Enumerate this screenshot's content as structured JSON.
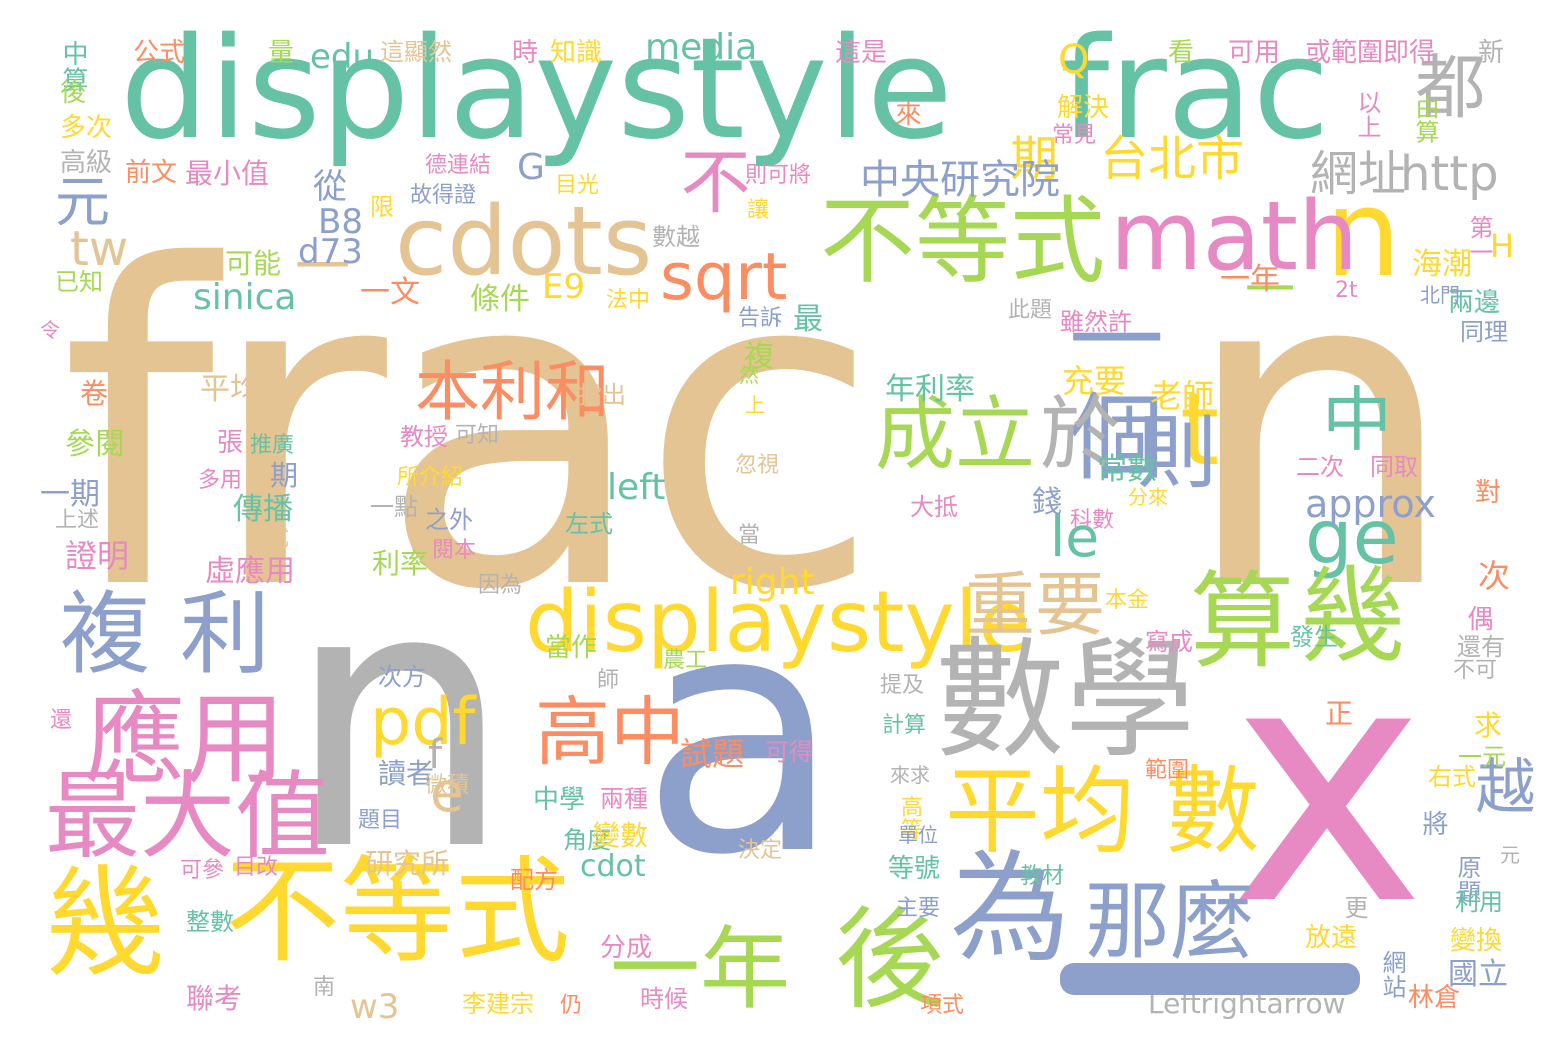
{
  "palette": {
    "green": "#66c2a5",
    "tan": "#e5c494",
    "gray": "#b3b3b3",
    "blue": "#8da0cb",
    "pink": "#e78ac3",
    "yellow": "#ffd92f",
    "lime": "#a6d854",
    "orange": "#fc8d62"
  },
  "words": [
    {
      "text": "frac",
      "color": "tan"
    },
    {
      "text": "n",
      "color": "tan"
    },
    {
      "text": "n",
      "color": "gray"
    },
    {
      "text": "a",
      "color": "blue"
    },
    {
      "text": "x",
      "color": "pink"
    },
    {
      "text": "displaystyle",
      "color": "green"
    },
    {
      "text": "frac",
      "color": "green"
    },
    {
      "text": "n",
      "color": "yellow"
    },
    {
      "text": "都",
      "color": "gray"
    },
    {
      "text": "cdots",
      "color": "tan"
    },
    {
      "text": "不等式",
      "color": "lime"
    },
    {
      "text": "math",
      "color": "pink"
    },
    {
      "text": "不",
      "color": "pink"
    },
    {
      "text": "sqrt",
      "color": "orange"
    },
    {
      "text": "期",
      "color": "yellow"
    },
    {
      "text": "台北市",
      "color": "yellow"
    },
    {
      "text": "一個",
      "color": "blue"
    },
    {
      "text": "成立",
      "color": "lime"
    },
    {
      "text": "於",
      "color": "gray"
    },
    {
      "text": "t",
      "color": "yellow"
    },
    {
      "text": "中",
      "color": "green"
    },
    {
      "text": "則",
      "color": "blue"
    },
    {
      "text": "ge",
      "color": "green"
    },
    {
      "text": "le",
      "color": "green"
    },
    {
      "text": "本利和",
      "color": "orange"
    },
    {
      "text": "displaystyle",
      "color": "yellow"
    },
    {
      "text": "重要",
      "color": "tan"
    },
    {
      "text": "算",
      "color": "lime"
    },
    {
      "text": "幾",
      "color": "lime"
    },
    {
      "text": "數學",
      "color": "gray"
    },
    {
      "text": "複",
      "color": "blue"
    },
    {
      "text": "利",
      "color": "blue"
    },
    {
      "text": "應用",
      "color": "pink"
    },
    {
      "text": "最大值",
      "color": "pink"
    },
    {
      "text": "pdf",
      "color": "yellow"
    },
    {
      "text": "高中",
      "color": "orange"
    },
    {
      "text": "平均",
      "color": "yellow"
    },
    {
      "text": "數",
      "color": "yellow"
    },
    {
      "text": "幾",
      "color": "yellow"
    },
    {
      "text": "不等式",
      "color": "yellow"
    },
    {
      "text": "一年",
      "color": "lime"
    },
    {
      "text": "後",
      "color": "lime"
    },
    {
      "text": "為",
      "color": "blue"
    },
    {
      "text": "那麼",
      "color": "blue"
    },
    {
      "text": "元",
      "color": "blue"
    },
    {
      "text": "tw",
      "color": "tan"
    },
    {
      "text": "一",
      "color": "tan"
    },
    {
      "text": "一",
      "color": "lime"
    },
    {
      "text": "e",
      "color": "tan"
    },
    {
      "text": "越",
      "color": "blue"
    },
    {
      "text": "網址",
      "color": "gray"
    },
    {
      "text": "http",
      "color": "gray"
    },
    {
      "text": "中央研究院",
      "color": "blue"
    },
    {
      "text": "年利率",
      "color": "green"
    },
    {
      "text": "edu",
      "color": "green"
    },
    {
      "text": "media",
      "color": "green"
    },
    {
      "text": "Q",
      "color": "yellow"
    },
    {
      "text": "G",
      "color": "blue"
    },
    {
      "text": "B8",
      "color": "blue"
    },
    {
      "text": "d73",
      "color": "blue"
    },
    {
      "text": "sinica",
      "color": "green"
    },
    {
      "text": "E9",
      "color": "yellow"
    },
    {
      "text": "approx",
      "color": "blue"
    },
    {
      "text": "left",
      "color": "green"
    },
    {
      "text": "right",
      "color": "yellow"
    },
    {
      "text": "cdot",
      "color": "green"
    },
    {
      "text": "w3",
      "color": "tan"
    },
    {
      "text": "f",
      "color": "gray"
    },
    {
      "text": "H",
      "color": "yellow"
    },
    {
      "text": "2t",
      "color": "pink"
    },
    {
      "text": "Leftrightarrow",
      "color": "gray"
    },
    {
      "text": "中算",
      "color": "green"
    },
    {
      "text": "公式",
      "color": "orange"
    },
    {
      "text": "量",
      "color": "lime"
    },
    {
      "text": "這顯然",
      "color": "tan"
    },
    {
      "text": "時",
      "color": "pink"
    },
    {
      "text": "知識",
      "color": "yellow"
    },
    {
      "text": "這是",
      "color": "pink"
    },
    {
      "text": "看",
      "color": "lime"
    },
    {
      "text": "可用",
      "color": "pink"
    },
    {
      "text": "或範圍即得",
      "color": "pink"
    },
    {
      "text": "新",
      "color": "gray"
    },
    {
      "text": "後",
      "color": "lime"
    },
    {
      "text": "多次",
      "color": "yellow"
    },
    {
      "text": "高級",
      "color": "gray"
    },
    {
      "text": "前文",
      "color": "orange"
    },
    {
      "text": "最小值",
      "color": "pink"
    },
    {
      "text": "可能",
      "color": "lime"
    },
    {
      "text": "已知",
      "color": "lime"
    },
    {
      "text": "令",
      "color": "pink"
    },
    {
      "text": "卷",
      "color": "orange"
    },
    {
      "text": "參閱",
      "color": "lime"
    },
    {
      "text": "一期",
      "color": "blue"
    },
    {
      "text": "上述",
      "color": "gray"
    },
    {
      "text": "證明",
      "color": "pink"
    },
    {
      "text": "解決",
      "color": "yellow"
    },
    {
      "text": "常見",
      "color": "pink"
    },
    {
      "text": "來",
      "color": "orange"
    },
    {
      "text": "以上",
      "color": "pink"
    },
    {
      "text": "由算",
      "color": "lime"
    },
    {
      "text": "第一",
      "color": "pink"
    },
    {
      "text": "兩邊",
      "color": "green"
    },
    {
      "text": "同理",
      "color": "blue"
    },
    {
      "text": "北門",
      "color": "blue"
    },
    {
      "text": "海潮",
      "color": "yellow"
    },
    {
      "text": "條件",
      "color": "lime"
    },
    {
      "text": "充要",
      "color": "yellow"
    },
    {
      "text": "老師",
      "color": "yellow"
    },
    {
      "text": "常數",
      "color": "green"
    },
    {
      "text": "錢",
      "color": "blue"
    },
    {
      "text": "科數",
      "color": "pink"
    },
    {
      "text": "二次",
      "color": "pink"
    },
    {
      "text": "同取",
      "color": "pink"
    },
    {
      "text": "分來",
      "color": "yellow"
    },
    {
      "text": "對",
      "color": "orange"
    },
    {
      "text": "次",
      "color": "orange"
    },
    {
      "text": "偶",
      "color": "pink"
    },
    {
      "text": "還有",
      "color": "gray"
    },
    {
      "text": "不可",
      "color": "gray"
    },
    {
      "text": "發生",
      "color": "green"
    },
    {
      "text": "寫成",
      "color": "pink"
    },
    {
      "text": "本金",
      "color": "yellow"
    },
    {
      "text": "求",
      "color": "yellow"
    },
    {
      "text": "一元",
      "color": "lime"
    },
    {
      "text": "右式",
      "color": "yellow"
    },
    {
      "text": "正",
      "color": "orange"
    },
    {
      "text": "範圍",
      "color": "orange"
    },
    {
      "text": "將",
      "color": "blue"
    },
    {
      "text": "原題",
      "color": "blue"
    },
    {
      "text": "利用",
      "color": "green"
    },
    {
      "text": "變換",
      "color": "yellow"
    },
    {
      "text": "網站",
      "color": "blue"
    },
    {
      "text": "國立",
      "color": "blue"
    },
    {
      "text": "更",
      "color": "gray"
    },
    {
      "text": "放遠",
      "color": "yellow"
    },
    {
      "text": "林倉",
      "color": "orange"
    },
    {
      "text": "元",
      "color": "gray"
    },
    {
      "text": "平均",
      "color": "tan"
    },
    {
      "text": "張",
      "color": "pink"
    },
    {
      "text": "推廣",
      "color": "green"
    },
    {
      "text": "期",
      "color": "blue"
    },
    {
      "text": "多用",
      "color": "pink"
    },
    {
      "text": "傳播",
      "color": "green"
    },
    {
      "text": "型式",
      "color": "tan"
    },
    {
      "text": "虛應用",
      "color": "pink"
    },
    {
      "text": "指出",
      "color": "tan"
    },
    {
      "text": "教授",
      "color": "pink"
    },
    {
      "text": "可知",
      "color": "gray"
    },
    {
      "text": "所介紹",
      "color": "yellow"
    },
    {
      "text": "一點",
      "color": "gray"
    },
    {
      "text": "之外",
      "color": "blue"
    },
    {
      "text": "閱本",
      "color": "pink"
    },
    {
      "text": "利率",
      "color": "lime"
    },
    {
      "text": "因為",
      "color": "gray"
    },
    {
      "text": "左式",
      "color": "green"
    },
    {
      "text": "複",
      "color": "lime"
    },
    {
      "text": "然",
      "color": "lime"
    },
    {
      "text": "上",
      "color": "yellow"
    },
    {
      "text": "忽視",
      "color": "tan"
    },
    {
      "text": "當",
      "color": "gray"
    },
    {
      "text": "大抵",
      "color": "pink"
    },
    {
      "text": "從",
      "color": "blue"
    },
    {
      "text": "德連結",
      "color": "pink"
    },
    {
      "text": "故得證",
      "color": "blue"
    },
    {
      "text": "目光",
      "color": "yellow"
    },
    {
      "text": "則可將",
      "color": "pink"
    },
    {
      "text": "限",
      "color": "yellow"
    },
    {
      "text": "讓",
      "color": "yellow"
    },
    {
      "text": "數越",
      "color": "gray"
    },
    {
      "text": "此題",
      "color": "gray"
    },
    {
      "text": "雖然許",
      "color": "pink"
    },
    {
      "text": "一文",
      "color": "orange"
    },
    {
      "text": "一年",
      "color": "orange"
    },
    {
      "text": "告訴",
      "color": "blue"
    },
    {
      "text": "最",
      "color": "green"
    },
    {
      "text": "法中",
      "color": "yellow"
    },
    {
      "text": "當作",
      "color": "lime"
    },
    {
      "text": "農工",
      "color": "lime"
    },
    {
      "text": "次方",
      "color": "blue"
    },
    {
      "text": "師",
      "color": "gray"
    },
    {
      "text": "提及",
      "color": "gray"
    },
    {
      "text": "計算",
      "color": "green"
    },
    {
      "text": "讀者",
      "color": "blue"
    },
    {
      "text": "試題",
      "color": "orange"
    },
    {
      "text": "可得",
      "color": "pink"
    },
    {
      "text": "微積",
      "color": "tan"
    },
    {
      "text": "中學",
      "color": "green"
    },
    {
      "text": "兩種",
      "color": "pink"
    },
    {
      "text": "來求",
      "color": "gray"
    },
    {
      "text": "高等",
      "color": "yellow"
    },
    {
      "text": "單位",
      "color": "blue"
    },
    {
      "text": "題目",
      "color": "blue"
    },
    {
      "text": "角度",
      "color": "green"
    },
    {
      "text": "變數",
      "color": "yellow"
    },
    {
      "text": "研究所",
      "color": "tan"
    },
    {
      "text": "決定",
      "color": "tan"
    },
    {
      "text": "等號",
      "color": "green"
    },
    {
      "text": "可參",
      "color": "pink"
    },
    {
      "text": "目改",
      "color": "pink"
    },
    {
      "text": "配方",
      "color": "orange"
    },
    {
      "text": "教材",
      "color": "green"
    },
    {
      "text": "主要",
      "color": "blue"
    },
    {
      "text": "整數",
      "color": "green"
    },
    {
      "text": "分成",
      "color": "pink"
    },
    {
      "text": "聯考",
      "color": "pink"
    },
    {
      "text": "南",
      "color": "gray"
    },
    {
      "text": "李建宗",
      "color": "yellow"
    },
    {
      "text": "仍",
      "color": "orange"
    },
    {
      "text": "時候",
      "color": "pink"
    },
    {
      "text": "項式",
      "color": "orange"
    },
    {
      "text": "還",
      "color": "pink"
    }
  ]
}
